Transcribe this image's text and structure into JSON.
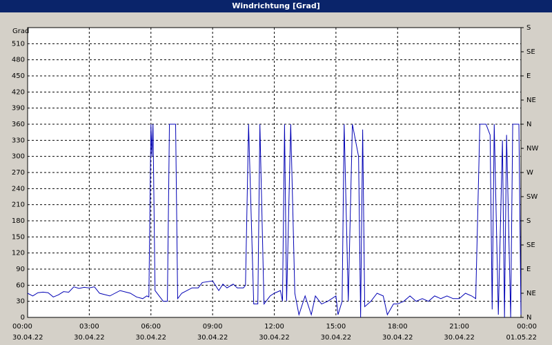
{
  "chart_data": {
    "type": "line",
    "title": "Windrichtung [Grad]",
    "ylabel": "Grad",
    "x": [
      0,
      0.25,
      0.5,
      0.75,
      1,
      1.25,
      1.5,
      1.75,
      2,
      2.25,
      2.5,
      2.75,
      3,
      3.25,
      3.5,
      4,
      4.5,
      5,
      5.3,
      5.6,
      5.8,
      5.9,
      6,
      6.05,
      6.1,
      6.2,
      6.4,
      6.6,
      6.8,
      6.9,
      7.2,
      7.3,
      7.5,
      8,
      8.3,
      8.5,
      9,
      9.3,
      9.5,
      9.7,
      10,
      10.2,
      10.5,
      10.6,
      10.75,
      11,
      11.2,
      11.3,
      11.5,
      11.8,
      12,
      12.3,
      12.4,
      12.5,
      12.6,
      12.8,
      13,
      13.2,
      13.5,
      13.8,
      14,
      14.3,
      14.6,
      15,
      15.1,
      15.3,
      15.4,
      15.6,
      15.8,
      16.1,
      16.2,
      16.3,
      16.4,
      16.7,
      17,
      17.3,
      17.5,
      17.8,
      18,
      18.3,
      18.6,
      18.9,
      19.2,
      19.5,
      19.8,
      20.1,
      20.4,
      20.7,
      21,
      21.3,
      21.6,
      21.8,
      22,
      22.3,
      22.5,
      22.6,
      22.7,
      22.9,
      23.1,
      23.2,
      23.3,
      23.5,
      23.6,
      23.9,
      24
    ],
    "series": [
      {
        "name": "Windrichtung",
        "color": "#0000b4",
        "values": [
          45,
          40,
          46,
          47,
          46,
          38,
          42,
          48,
          47,
          57,
          54,
          56,
          55,
          57,
          45,
          40,
          50,
          45,
          38,
          35,
          40,
          38,
          360,
          300,
          360,
          50,
          40,
          30,
          30,
          360,
          360,
          35,
          45,
          55,
          55,
          65,
          68,
          50,
          62,
          55,
          62,
          55,
          55,
          60,
          360,
          25,
          25,
          360,
          25,
          40,
          45,
          50,
          30,
          360,
          30,
          360,
          45,
          5,
          40,
          5,
          40,
          25,
          30,
          40,
          5,
          30,
          360,
          30,
          360,
          300,
          0,
          350,
          20,
          30,
          45,
          40,
          5,
          25,
          25,
          30,
          40,
          30,
          35,
          30,
          40,
          35,
          40,
          35,
          35,
          45,
          40,
          35,
          360,
          360,
          340,
          15,
          360,
          5,
          330,
          0,
          340,
          0,
          360,
          360,
          5
        ]
      }
    ],
    "xlim": [
      0,
      24
    ],
    "xticks": [
      {
        "value": 0,
        "label": "00:00",
        "date": "30.04.22"
      },
      {
        "value": 3,
        "label": "03:00",
        "date": "30.04.22"
      },
      {
        "value": 6,
        "label": "06:00",
        "date": "30.04.22"
      },
      {
        "value": 9,
        "label": "09:00",
        "date": "30.04.22"
      },
      {
        "value": 12,
        "label": "12:00",
        "date": "30.04.22"
      },
      {
        "value": 15,
        "label": "15:00",
        "date": "30.04.22"
      },
      {
        "value": 18,
        "label": "18:00",
        "date": "30.04.22"
      },
      {
        "value": 21,
        "label": "21:00",
        "date": "30.04.22"
      },
      {
        "value": 24,
        "label": "00:00",
        "date": "01.05.22"
      }
    ],
    "ylim": [
      0,
      540
    ],
    "yticks": [
      0,
      30,
      60,
      90,
      120,
      150,
      180,
      210,
      240,
      270,
      300,
      330,
      360,
      390,
      420,
      450,
      480,
      510
    ],
    "y2lim": [
      0,
      540
    ],
    "y2ticks": [
      {
        "value": 0,
        "label": "N"
      },
      {
        "value": 45,
        "label": "NE"
      },
      {
        "value": 90,
        "label": "E"
      },
      {
        "value": 135,
        "label": "SE"
      },
      {
        "value": 180,
        "label": "S"
      },
      {
        "value": 225,
        "label": "SW"
      },
      {
        "value": 270,
        "label": "W"
      },
      {
        "value": 315,
        "label": "NW"
      },
      {
        "value": 360,
        "label": "N"
      },
      {
        "value": 405,
        "label": "NE"
      },
      {
        "value": 450,
        "label": "E"
      },
      {
        "value": 495,
        "label": "SE"
      },
      {
        "value": 540,
        "label": "S"
      }
    ],
    "grid": true
  }
}
